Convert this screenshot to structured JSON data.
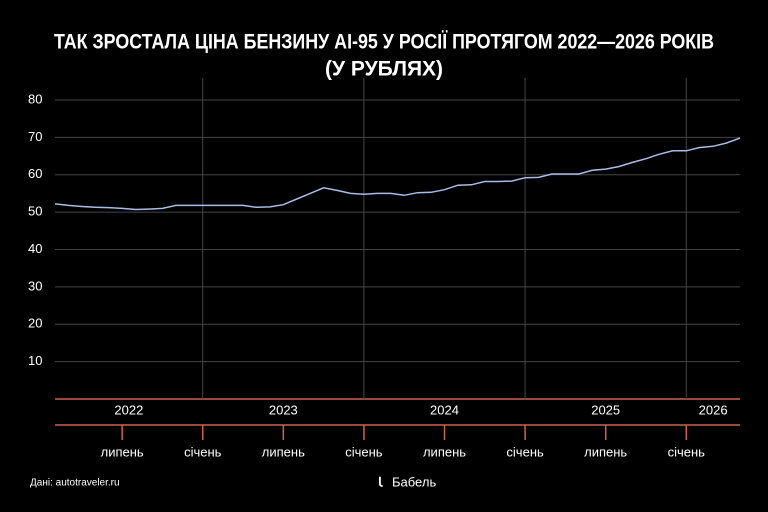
{
  "chart_data": {
    "type": "line",
    "title": "ТАК ЗРОСТАЛА ЦІНА БЕНЗИНУ АІ-95 У РОСІЇ ПРОТЯГОМ 2022—2026 РОКІВ",
    "subtitle": "(У РУБЛЯХ)",
    "source": "Дані: autotraveler.ru",
    "logo": "Бабель",
    "x": [
      "2022-02",
      "2022-03",
      "2022-04",
      "2022-05",
      "2022-06",
      "2022-07",
      "2022-08",
      "2022-09",
      "2022-10",
      "2022-11",
      "2022-12",
      "2023-01",
      "2023-02",
      "2023-03",
      "2023-04",
      "2023-05",
      "2023-06",
      "2023-07",
      "2023-08",
      "2023-09",
      "2023-10",
      "2023-11",
      "2023-12",
      "2024-01",
      "2024-02",
      "2024-03",
      "2024-04",
      "2024-05",
      "2024-06",
      "2024-07",
      "2024-08",
      "2024-09",
      "2024-10",
      "2024-11",
      "2024-12",
      "2025-01",
      "2025-02",
      "2025-03",
      "2025-04",
      "2025-05",
      "2025-06",
      "2025-07",
      "2025-08",
      "2025-09",
      "2025-10",
      "2025-11",
      "2025-12",
      "2026-01",
      "2026-02",
      "2026-03",
      "2026-04",
      "2026-05"
    ],
    "series": [
      {
        "name": "АІ-95",
        "color": "#a9bbe6",
        "values": [
          52.2,
          51.8,
          51.5,
          51.3,
          51.2,
          51.0,
          50.7,
          50.8,
          51.0,
          51.8,
          51.8,
          51.8,
          51.8,
          51.8,
          51.8,
          51.3,
          51.4,
          52.0,
          53.5,
          55.0,
          56.5,
          55.8,
          55.0,
          54.8,
          55.0,
          55.0,
          54.5,
          55.2,
          55.3,
          56.0,
          57.2,
          57.3,
          58.2,
          58.2,
          58.3,
          59.2,
          59.3,
          60.2,
          60.2,
          60.2,
          61.2,
          61.5,
          62.2,
          63.3,
          64.3,
          65.5,
          66.4,
          66.4,
          67.3,
          67.6,
          68.5,
          69.8
        ]
      }
    ],
    "xlim": [
      "2022-02",
      "2026-05"
    ],
    "ylim": [
      0,
      80
    ],
    "yticks": [
      10,
      20,
      30,
      40,
      50,
      60,
      70,
      80
    ],
    "xticks": [
      {
        "value": "2022-07",
        "label": "липень"
      },
      {
        "value": "2023-01",
        "label": "січень"
      },
      {
        "value": "2023-07",
        "label": "липень"
      },
      {
        "value": "2024-01",
        "label": "січень"
      },
      {
        "value": "2024-07",
        "label": "липень"
      },
      {
        "value": "2025-01",
        "label": "січень"
      },
      {
        "value": "2025-07",
        "label": "липень"
      },
      {
        "value": "2026-01",
        "label": "січень"
      }
    ],
    "years": [
      "2022",
      "2023",
      "2024",
      "2025",
      "2026"
    ],
    "grid": true
  }
}
